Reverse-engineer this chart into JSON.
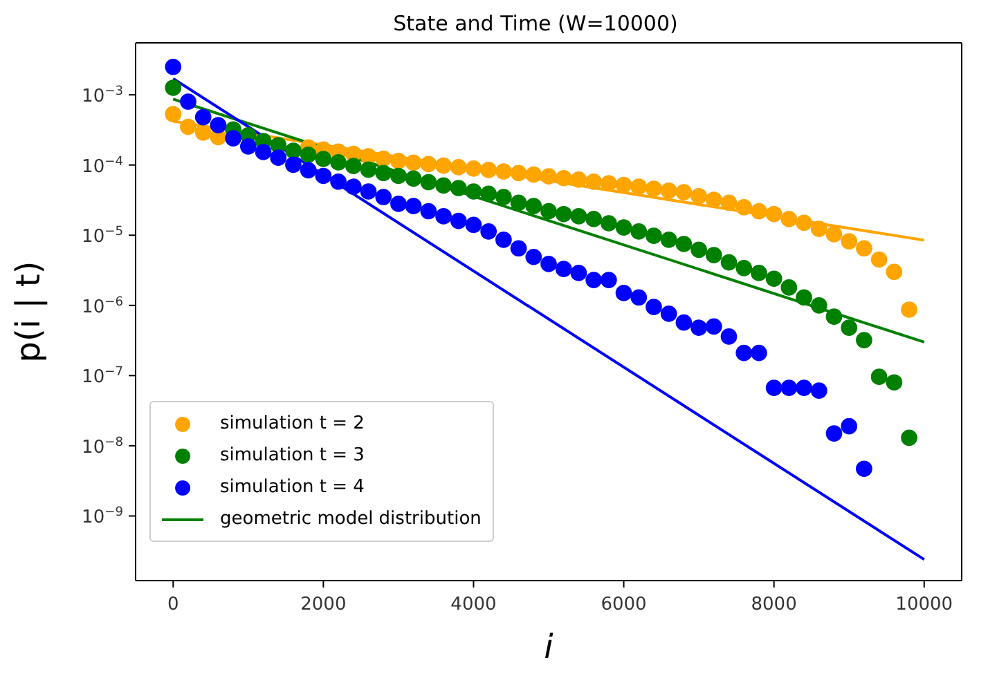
{
  "chart_data": {
    "type": "scatter",
    "title": "State and Time (W=10000)",
    "xlabel": "i",
    "ylabel": "p(i | t)",
    "legend": "bottom left",
    "xlim": [
      -500,
      10500
    ],
    "xticks": [
      0,
      2000,
      4000,
      6000,
      8000,
      10000
    ],
    "ylim": [
      1.2e-10,
      0.0055
    ],
    "log": "y",
    "yticks": [
      {
        "value": 1e-09,
        "label": "10$^{−9}$"
      },
      {
        "value": 1e-08,
        "label": "10$^{−8}$"
      },
      {
        "value": 1e-07,
        "label": "10$^{−7}$"
      },
      {
        "value": 1e-06,
        "label": "10$^{−6}$"
      },
      {
        "value": 1e-05,
        "label": "10$^{−5}$"
      },
      {
        "value": 0.0001,
        "label": "10$^{−4}$"
      },
      {
        "value": 0.001,
        "label": "10$^{−3}$"
      }
    ],
    "x": [
      0,
      200,
      400,
      600,
      800,
      1000,
      1200,
      1400,
      1600,
      1800,
      2000,
      2200,
      2400,
      2600,
      2800,
      3000,
      3200,
      3400,
      3600,
      3800,
      4000,
      4200,
      4400,
      4600,
      4800,
      5000,
      5200,
      5400,
      5600,
      5800,
      6000,
      6200,
      6400,
      6600,
      6800,
      7000,
      7200,
      7400,
      7600,
      7800,
      8000,
      8200,
      8400,
      8600,
      8800,
      9000,
      9200,
      9400,
      9600,
      9800
    ],
    "series": [
      {
        "name": "simulation t = 2",
        "marker": "circle",
        "color": "#ffa500",
        "values": [
          0.00053,
          0.00035,
          0.00029,
          0.00025,
          null,
          null,
          null,
          null,
          null,
          0.000178,
          0.000166,
          0.000155,
          0.000144,
          0.000133,
          0.000123,
          0.000114,
          0.000108,
          0.000103,
          9.8e-05,
          9.3e-05,
          8.9e-05,
          8.5e-05,
          8.1e-05,
          7.7e-05,
          7.3e-05,
          6.9e-05,
          6.5e-05,
          6.2e-05,
          5.8e-05,
          5.5e-05,
          5.2e-05,
          4.9e-05,
          4.6e-05,
          4.3e-05,
          4.1e-05,
          3.6e-05,
          3.2e-05,
          2.9e-05,
          2.5e-05,
          2.2e-05,
          2e-05,
          1.7e-05,
          1.5e-05,
          1.23e-05,
          1.03e-05,
          8.2e-06,
          6.5e-06,
          4.5e-06,
          3e-06,
          8.7e-07
        ]
      },
      {
        "name": "simulation t = 3",
        "marker": "circle",
        "color": "#008000",
        "values": [
          0.00126,
          null,
          null,
          null,
          0.00032,
          0.000265,
          0.00022,
          0.000192,
          0.00016,
          0.00014,
          0.000122,
          0.000109,
          9.7e-05,
          8.6e-05,
          7.7e-05,
          7e-05,
          6.4e-05,
          5.7e-05,
          5.1e-05,
          4.7e-05,
          4.2e-05,
          3.9e-05,
          3.5e-05,
          2.9e-05,
          2.6e-05,
          2.2e-05,
          2e-05,
          1.86e-05,
          1.7e-05,
          1.48e-05,
          1.29e-05,
          1.13e-05,
          9.8e-06,
          8.6e-06,
          7.5e-06,
          6.2e-06,
          5.2e-06,
          4.1e-06,
          3.4e-06,
          2.9e-06,
          2.4e-06,
          1.8e-06,
          1.3e-06,
          1e-06,
          6.9e-07,
          4.8e-07,
          3.2e-07,
          9.6e-08,
          8e-08,
          1.3e-08
        ]
      },
      {
        "name": "simulation t = 4",
        "marker": "circle",
        "color": "#0000ff",
        "x": [
          0,
          200,
          400,
          600,
          800,
          1000,
          1200,
          1400,
          1600,
          1800,
          2000,
          2200,
          2400,
          2600,
          2800,
          3000,
          3200,
          3400,
          3600,
          3800,
          4000,
          4200,
          4400,
          4600,
          4800,
          5000,
          5200,
          5400,
          5600,
          5800,
          6000,
          6200,
          6400,
          6600,
          6800,
          7000,
          7200,
          7400,
          7600,
          7800,
          8000,
          8200,
          8400,
          8600,
          8800,
          9000,
          9200
        ],
        "values": [
          0.0025,
          0.0008,
          0.00048,
          0.00037,
          0.00024,
          0.000184,
          0.000153,
          0.000127,
          0.000101,
          8.4e-05,
          7e-05,
          5.8e-05,
          4.9e-05,
          4.2e-05,
          3.5e-05,
          2.8e-05,
          2.6e-05,
          2.2e-05,
          1.86e-05,
          1.6e-05,
          1.4e-05,
          1.13e-05,
          8.6e-06,
          6.5e-06,
          4.9e-06,
          3.9e-06,
          3.3e-06,
          2.9e-06,
          2.3e-06,
          2.3e-06,
          1.5e-06,
          1.3e-06,
          9.5e-07,
          7.6e-07,
          5.7e-07,
          4.8e-07,
          5e-07,
          3.6e-07,
          2.1e-07,
          2.1e-07,
          6.7e-08,
          6.7e-08,
          6.7e-08,
          6.1e-08,
          1.5e-08,
          1.9e-08,
          4.7e-09
        ]
      },
      {
        "type": "line",
        "color": "#ffa500",
        "x": [
          0,
          10000
        ],
        "values": [
          0.00042,
          8.5e-06
        ]
      },
      {
        "type": "line",
        "name": "geometric model distribution",
        "color": "#008000",
        "x": [
          0,
          10000
        ],
        "values": [
          0.00087,
          3e-07
        ]
      },
      {
        "type": "line",
        "color": "#0000ff",
        "x": [
          0,
          10000
        ],
        "values": [
          0.0017,
          2.4e-10
        ]
      }
    ]
  }
}
